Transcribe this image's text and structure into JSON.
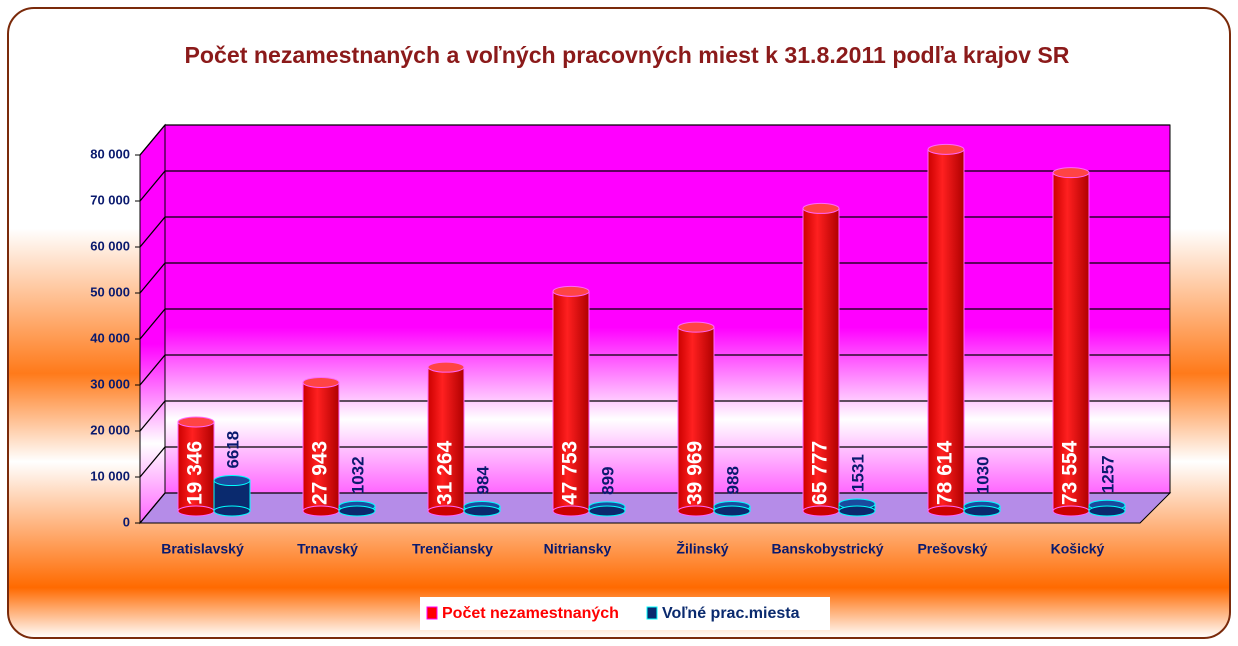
{
  "chart_data": {
    "type": "bar",
    "title": "Počet nezamestnaných a voľných pracovných miest k 31.8.2011 podľa krajov SR",
    "categories": [
      "Bratislavský",
      "Trnavský",
      "Trenčiansky",
      "Nitriansky",
      "Žilinský",
      "Banskobystrický",
      "Prešovský",
      "Košický"
    ],
    "series": [
      {
        "name": "Počet nezamestnaných",
        "color": "#ff0000",
        "values": [
          19346,
          27943,
          31264,
          47753,
          39969,
          65777,
          78614,
          73554
        ],
        "value_labels": [
          "19 346",
          "27 943",
          "31 264",
          "47 753",
          "39 969",
          "65 777",
          "78 614",
          "73 554"
        ]
      },
      {
        "name": "Voľné prac.miesta",
        "color": "#0a2a6e",
        "values": [
          6618,
          1032,
          984,
          899,
          988,
          1531,
          1030,
          1257
        ]
      }
    ],
    "ylim": [
      0,
      80000
    ],
    "yticks": [
      0,
      {
        "value": 10000,
        "label": "10 000"
      },
      {
        "value": 20000,
        "label": "20 000"
      },
      {
        "value": 30000,
        "label": "30 000"
      },
      {
        "value": 40000,
        "label": "40 000"
      },
      {
        "value": 50000,
        "label": "50 000"
      },
      {
        "value": 60000,
        "label": "60 000"
      },
      {
        "value": 70000,
        "label": "70 000"
      },
      {
        "value": 80000,
        "label": "80 000"
      }
    ],
    "grid": true,
    "legend": "bottom"
  }
}
